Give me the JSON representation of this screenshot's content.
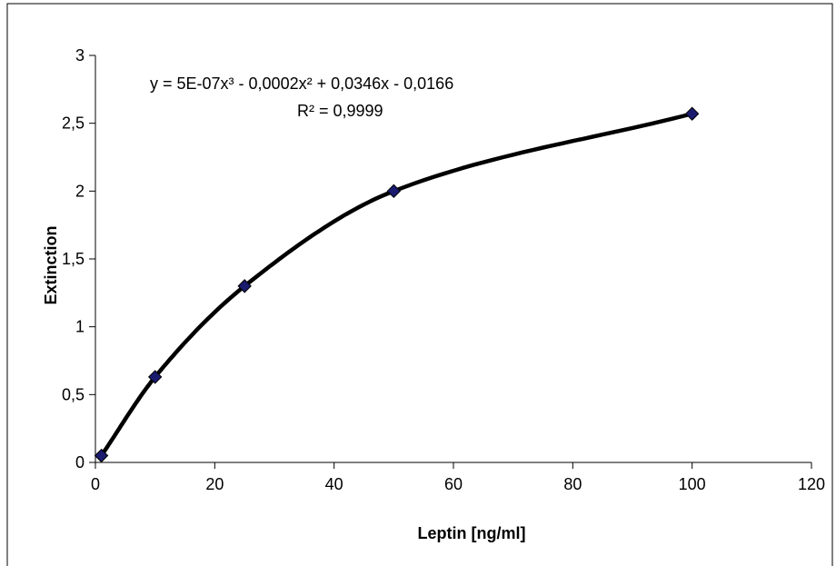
{
  "chart_data": {
    "type": "scatter",
    "xlabel": "Leptin  [ng/ml]",
    "ylabel": "Extinction",
    "xlim": [
      0,
      120
    ],
    "ylim": [
      0,
      3
    ],
    "x_ticks": [
      "0",
      "20",
      "40",
      "60",
      "80",
      "100",
      "120"
    ],
    "y_ticks": [
      "0",
      "0,5",
      "1",
      "1,5",
      "2",
      "2,5",
      "3"
    ],
    "grid": false,
    "legend": "none",
    "series": [
      {
        "x": [
          1,
          10,
          25,
          50,
          100
        ],
        "y": [
          0.05,
          0.63,
          1.3,
          2.0,
          2.57
        ],
        "marker": "diamond",
        "marker_color": "#1a1a6e"
      }
    ],
    "trendline": {
      "type": "polynomial-3",
      "coefficients": [
        5e-07,
        -0.0002,
        0.0346,
        -0.0166
      ],
      "color": "#000000"
    },
    "annotations": {
      "equation": "y = 5E-07x³ - 0,0002x² + 0,0346x - 0,0166",
      "r_squared": "R² = 0,9999"
    }
  }
}
